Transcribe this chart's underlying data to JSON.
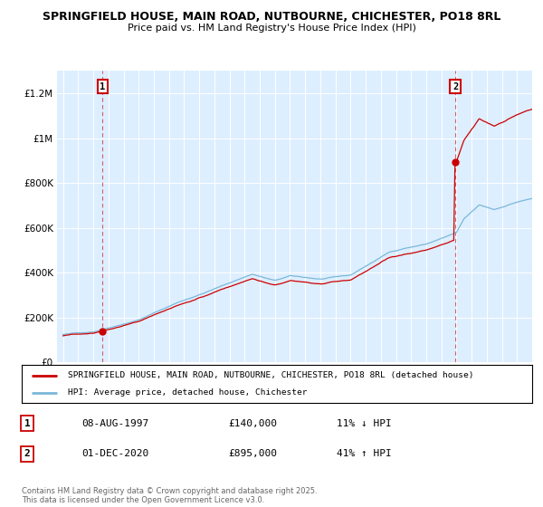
{
  "title1": "SPRINGFIELD HOUSE, MAIN ROAD, NUTBOURNE, CHICHESTER, PO18 8RL",
  "title2": "Price paid vs. HM Land Registry's House Price Index (HPI)",
  "ylim": [
    0,
    1300000
  ],
  "yticks": [
    0,
    200000,
    400000,
    600000,
    800000,
    1000000,
    1200000
  ],
  "ytick_labels": [
    "£0",
    "£200K",
    "£400K",
    "£600K",
    "£800K",
    "£1M",
    "£1.2M"
  ],
  "t_sale1": 1997.614,
  "price_sale1": 140000,
  "t_sale2": 2020.917,
  "price_sale2": 895000,
  "legend_line1": "SPRINGFIELD HOUSE, MAIN ROAD, NUTBOURNE, CHICHESTER, PO18 8RL (detached house)",
  "legend_line2": "HPI: Average price, detached house, Chichester",
  "table_rows": [
    {
      "num": "1",
      "date": "08-AUG-1997",
      "price": "£140,000",
      "hpi": "11% ↓ HPI"
    },
    {
      "num": "2",
      "date": "01-DEC-2020",
      "price": "£895,000",
      "hpi": "41% ↑ HPI"
    }
  ],
  "hpi_color": "#7ab8d9",
  "price_color": "#cc0000",
  "vline_color": "#cc0000",
  "chart_bg": "#ddeeff",
  "fig_bg": "#ffffff"
}
